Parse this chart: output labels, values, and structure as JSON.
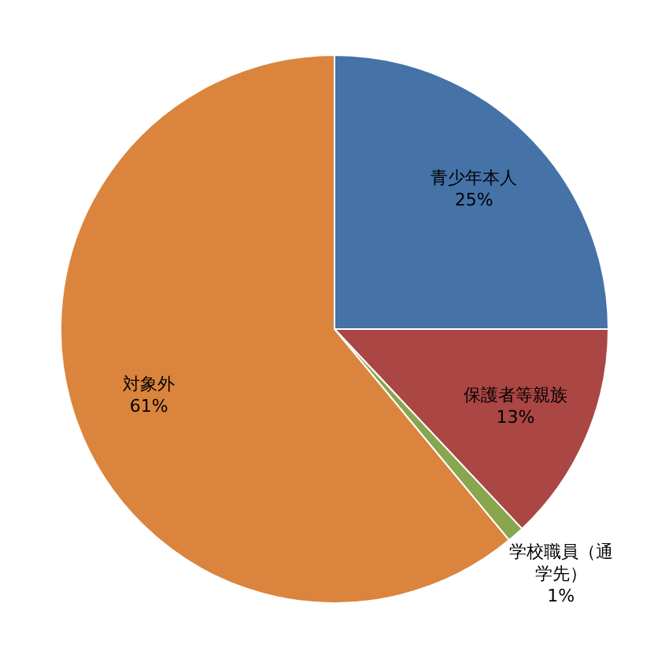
{
  "chart_data": {
    "type": "pie",
    "categories": [
      "青少年本人",
      "保護者等親族",
      "学校職員（通学先）",
      "対象外"
    ],
    "values": [
      25,
      13,
      1,
      61
    ],
    "colors": [
      "#4572a7",
      "#aa4643",
      "#89a54e",
      "#db843d"
    ],
    "value_labels": [
      "25%",
      "13%",
      "1%",
      "61%"
    ],
    "legend": false
  }
}
